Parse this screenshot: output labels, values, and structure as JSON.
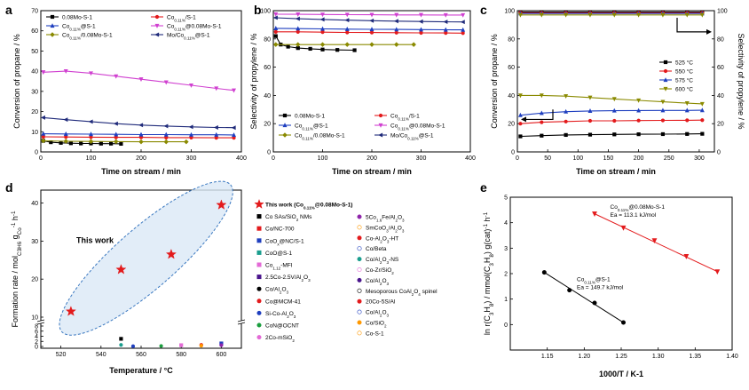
{
  "chart_data": [
    {
      "panel": "a",
      "type": "line",
      "xlabel": "Time on stream / min",
      "ylabel": "Conversion of propane / %",
      "xlim": [
        0,
        400
      ],
      "ylim": [
        0,
        70
      ],
      "xticks": [
        0,
        100,
        200,
        300,
        400
      ],
      "yticks": [
        0,
        10,
        20,
        30,
        40,
        50,
        60,
        70
      ],
      "series": [
        {
          "name": "0.08Mo-S-1",
          "color": "#000000",
          "marker": "square",
          "x": [
            5,
            20,
            40,
            60,
            80,
            100,
            120,
            140,
            160
          ],
          "y": [
            5.5,
            4.8,
            4.5,
            4.3,
            4.2,
            4.2,
            4.1,
            4.1,
            4.0
          ]
        },
        {
          "name": "Co0.11%/S-1",
          "color": "#e31a1c",
          "marker": "circle",
          "x": [
            5,
            50,
            100,
            150,
            200,
            250,
            300,
            350,
            385
          ],
          "y": [
            7.5,
            7.4,
            7.3,
            7.2,
            7.2,
            7.1,
            7.1,
            7.0,
            7.0
          ]
        },
        {
          "name": "Co0.11%@S-1",
          "color": "#1f3fbf",
          "marker": "triangle",
          "x": [
            5,
            50,
            100,
            150,
            200,
            250,
            300,
            350,
            385
          ],
          "y": [
            9.0,
            8.9,
            8.8,
            8.7,
            8.6,
            8.6,
            8.5,
            8.5,
            8.4
          ]
        },
        {
          "name": "Co0.11%@0.08Mo-S-1",
          "color": "#d040d0",
          "marker": "triangle-down",
          "x": [
            5,
            50,
            100,
            150,
            200,
            250,
            300,
            350,
            385
          ],
          "y": [
            39.5,
            40.0,
            39.0,
            37.5,
            36.0,
            34.5,
            33.0,
            31.5,
            30.5
          ]
        },
        {
          "name": "Co0.11%/0.08Mo-S-1",
          "color": "#8a8a00",
          "marker": "diamond",
          "x": [
            5,
            50,
            100,
            150,
            200,
            250,
            290
          ],
          "y": [
            5.5,
            5.3,
            5.2,
            5.1,
            5.0,
            5.0,
            5.0
          ]
        },
        {
          "name": "Mo/Co0.11%@S-1",
          "color": "#1f2a7a",
          "marker": "triangle-left",
          "x": [
            5,
            50,
            100,
            150,
            200,
            250,
            300,
            350,
            385
          ],
          "y": [
            17.0,
            16.0,
            15.0,
            14.0,
            13.3,
            12.8,
            12.4,
            12.1,
            12.0
          ]
        }
      ]
    },
    {
      "panel": "b",
      "type": "line",
      "xlabel": "Time on stream / min",
      "ylabel": "Selectivity of propylene / %",
      "xlim": [
        0,
        400
      ],
      "ylim": [
        0,
        100
      ],
      "xticks": [
        0,
        100,
        200,
        300,
        400
      ],
      "yticks": [
        0,
        20,
        40,
        60,
        80,
        100
      ],
      "series": [
        {
          "name": "0.08Mo-S-1",
          "color": "#000000",
          "marker": "square",
          "x": [
            5,
            15,
            30,
            50,
            75,
            100,
            130,
            165
          ],
          "y": [
            82,
            76,
            74.5,
            73.5,
            73,
            72.5,
            72.2,
            72
          ]
        },
        {
          "name": "Co0.11%/S-1",
          "color": "#e31a1c",
          "marker": "circle",
          "x": [
            5,
            50,
            100,
            150,
            200,
            250,
            300,
            350,
            385
          ],
          "y": [
            85,
            85,
            84.8,
            84.6,
            84.5,
            84.4,
            84.3,
            84.2,
            84.1
          ]
        },
        {
          "name": "Co0.11%@S-1",
          "color": "#1f3fbf",
          "marker": "triangle",
          "x": [
            5,
            50,
            100,
            150,
            200,
            250,
            300,
            350,
            385
          ],
          "y": [
            87.5,
            87.3,
            87.1,
            86.9,
            86.8,
            86.7,
            86.6,
            86.5,
            86.4
          ]
        },
        {
          "name": "Co0.11%@0.08Mo-S-1",
          "color": "#d040d0",
          "marker": "triangle-down",
          "x": [
            5,
            50,
            100,
            150,
            200,
            250,
            300,
            350,
            385
          ],
          "y": [
            97.5,
            97.4,
            97.3,
            97.2,
            97.1,
            97.0,
            97.0,
            96.9,
            96.9
          ]
        },
        {
          "name": "Co0.11%/0.08Mo-S-1",
          "color": "#8a8a00",
          "marker": "diamond",
          "x": [
            5,
            50,
            100,
            150,
            200,
            250,
            285
          ],
          "y": [
            76,
            76,
            76,
            76,
            76,
            76,
            76
          ]
        },
        {
          "name": "Mo/Co0.11%@S-1",
          "color": "#1f2a7a",
          "marker": "triangle-left",
          "x": [
            5,
            50,
            100,
            150,
            200,
            250,
            300,
            350,
            385
          ],
          "y": [
            95,
            94.3,
            93.8,
            93.3,
            92.9,
            92.6,
            92.3,
            92.1,
            92.0
          ]
        }
      ]
    },
    {
      "panel": "c",
      "type": "line",
      "xlabel": "Time on stream / min",
      "ylabel": "Conversion of propane / %",
      "ylabel_right": "Selectivity of propylene / %",
      "xlim": [
        0,
        325
      ],
      "ylim": [
        0,
        100
      ],
      "xticks": [
        0,
        50,
        100,
        150,
        200,
        250,
        300
      ],
      "yticks": [
        0,
        20,
        40,
        60,
        80,
        100
      ],
      "series": [
        {
          "name": "525 °C",
          "color": "#000000",
          "marker": "square",
          "x": [
            5,
            40,
            80,
            120,
            160,
            200,
            240,
            280,
            305
          ],
          "conversion": [
            11,
            11.5,
            12,
            12.2,
            12.4,
            12.5,
            12.6,
            12.7,
            12.8
          ],
          "selectivity": [
            99,
            99,
            99,
            99,
            99,
            99,
            99,
            99,
            99
          ]
        },
        {
          "name": "550 °C",
          "color": "#e31a1c",
          "marker": "circle",
          "x": [
            5,
            40,
            80,
            120,
            160,
            200,
            240,
            280,
            305
          ],
          "conversion": [
            20,
            21,
            21.5,
            22,
            22,
            22.2,
            22.3,
            22.4,
            22.5
          ],
          "selectivity": [
            98.5,
            98.5,
            98.5,
            98.5,
            98.5,
            98.5,
            98.5,
            98.5,
            98.5
          ]
        },
        {
          "name": "575 °C",
          "color": "#1f3fbf",
          "marker": "triangle",
          "x": [
            5,
            40,
            80,
            120,
            160,
            200,
            240,
            280,
            305
          ],
          "conversion": [
            26,
            27.5,
            28.5,
            29,
            29.2,
            29.3,
            29.4,
            29.4,
            29.5
          ],
          "selectivity": [
            98,
            98,
            98,
            98,
            98,
            98,
            98,
            98,
            98
          ]
        },
        {
          "name": "600 °C",
          "color": "#8a8a00",
          "marker": "triangle-down",
          "x": [
            5,
            40,
            80,
            120,
            160,
            200,
            240,
            280,
            305
          ],
          "conversion": [
            40,
            40,
            39.5,
            38.5,
            37.5,
            36.5,
            35.5,
            34.5,
            34
          ],
          "selectivity": [
            97,
            97,
            97,
            97,
            97,
            97,
            97,
            97,
            97
          ]
        }
      ]
    },
    {
      "panel": "d",
      "type": "scatter",
      "xlabel": "Temperature / °C",
      "ylabel": "Formation rate / mol C3H6 gCo-1 h-1",
      "xlim": [
        510,
        610
      ],
      "xticks": [
        520,
        540,
        560,
        580,
        600
      ],
      "yticks_lower": [
        0,
        2,
        4,
        6,
        8
      ],
      "yticks_upper": [
        10,
        20,
        30,
        40
      ],
      "annotation": "This work",
      "this_work": {
        "x": [
          525,
          550,
          575,
          600
        ],
        "y": [
          11.5,
          22.5,
          26.5,
          39.5
        ]
      },
      "others": {
        "x": [
          550,
          550,
          556,
          570,
          580,
          590,
          590,
          600,
          600
        ],
        "y": [
          3.0,
          0.6,
          0.1,
          0.2,
          0.5,
          0.6,
          0.3,
          1.2,
          0.5
        ]
      },
      "legend_col1": [
        {
          "label": "This work (Co0.11%@0.08Mo-S-1)",
          "color": "#e31a1c",
          "marker": "star"
        },
        {
          "label": "Co SAs/SiO2 NMs",
          "color": "#000000",
          "marker": "square"
        },
        {
          "label": "Co/NC-700",
          "color": "#e31a1c",
          "marker": "square"
        },
        {
          "label": "CoOx@NC/S-1",
          "color": "#1f3fbf",
          "marker": "square"
        },
        {
          "label": "CoO@S-1",
          "color": "#1a9e8e",
          "marker": "square"
        },
        {
          "label": "Co1.12-MFI",
          "color": "#e36ad6",
          "marker": "square"
        },
        {
          "label": "2.5Co-2.5V/Al2O3",
          "color": "#4a148c",
          "marker": "square"
        },
        {
          "label": "Co/Al2O3",
          "color": "#000000",
          "marker": "circle"
        },
        {
          "label": "Co@MCM-41",
          "color": "#e31a1c",
          "marker": "circle"
        },
        {
          "label": "Si-Co-Al2O3",
          "color": "#1f3fbf",
          "marker": "circle"
        },
        {
          "label": "CoN@OCNT",
          "color": "#1a9e3e",
          "marker": "circle"
        },
        {
          "label": "2Co-mSiO2",
          "color": "#e36ad6",
          "marker": "circle"
        }
      ],
      "legend_col2": [
        {
          "label": "5Co1.6Fe/Al2O3",
          "color": "#8e24aa",
          "marker": "circle"
        },
        {
          "label": "SmCoO3/Al2O3",
          "color": "#ff9800",
          "marker": "circle-half"
        },
        {
          "label": "Co-Al2O3-HT",
          "color": "#e31a1c",
          "marker": "circle-half"
        },
        {
          "label": "Co/Beta",
          "color": "#1f3fbf",
          "marker": "circle-half"
        },
        {
          "label": "Co/Al2O3-NS",
          "color": "#1a9e8e",
          "marker": "circle-half"
        },
        {
          "label": "Co-Zr/SiO2",
          "color": "#e36ad6",
          "marker": "circle-half"
        },
        {
          "label": "Co/Al2O3",
          "color": "#4a148c",
          "marker": "circle-half"
        },
        {
          "label": "Mesoporous CoAl2O4 spinel",
          "color": "#000000",
          "marker": "circle-half"
        },
        {
          "label": "20Co-5S/Al",
          "color": "#e31a1c",
          "marker": "circle-half"
        },
        {
          "label": "Co/Al2O3",
          "color": "#1f3fbf",
          "marker": "circle-half"
        },
        {
          "label": "Co/SiO2",
          "color": "#ff9800",
          "marker": "circle-half"
        },
        {
          "label": "Co-S-1",
          "color": "#ff9800",
          "marker": "circle-half"
        }
      ]
    },
    {
      "panel": "e",
      "type": "scatter",
      "xlabel": "1000/T / K-1",
      "ylabel": "ln r(C3H8) / mmol(C3H8) g(cat)-1 h-1",
      "xlim": [
        1.1,
        1.4
      ],
      "ylim": [
        -1,
        5
      ],
      "xticks": [
        1.15,
        1.2,
        1.25,
        1.3,
        1.35,
        1.4
      ],
      "yticks": [
        0,
        1,
        2,
        3,
        4,
        5
      ],
      "series": [
        {
          "name": "Co0.11%@S-1",
          "note": "Ea = 149.7 kJ/mol",
          "color": "#000000",
          "x": [
            1.146,
            1.18,
            1.214,
            1.253
          ],
          "y": [
            2.05,
            1.35,
            0.85,
            0.08
          ]
        },
        {
          "name": "Co0.11%@0.08Mo-S-1",
          "note": "Ea = 113.1 kJ/mol",
          "color": "#e31a1c",
          "x": [
            1.214,
            1.253,
            1.295,
            1.338,
            1.38
          ],
          "y": [
            4.35,
            3.8,
            3.3,
            2.68,
            2.08
          ]
        }
      ]
    }
  ]
}
